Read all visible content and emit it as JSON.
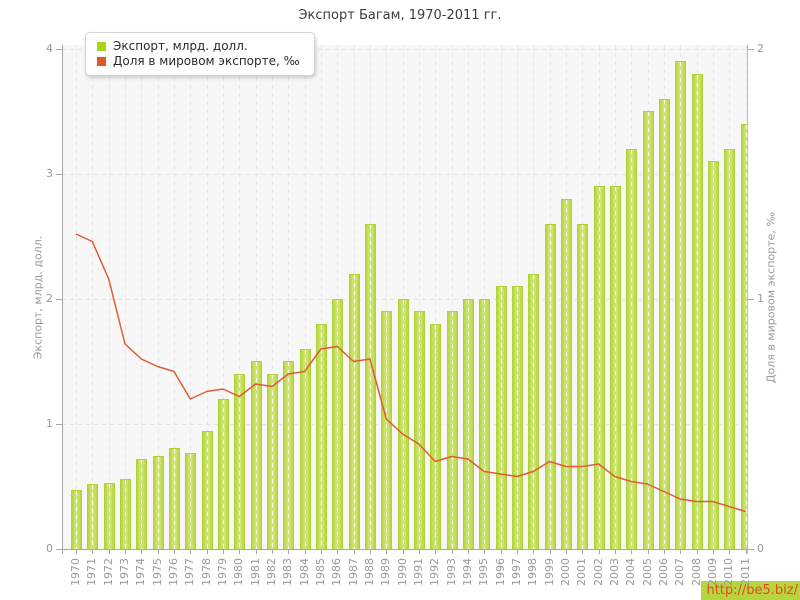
{
  "title": "Экспорт Багам, 1970-2011 гг.",
  "legend": {
    "items": [
      {
        "label": "Экспорт, млрд. долл.",
        "color": "#a9d318"
      },
      {
        "label": "Доля в мировом экспорте, ‰",
        "color": "#e2572b"
      }
    ]
  },
  "watermark": {
    "text": "http://be5.biz/",
    "bg": "#b6d53e",
    "color": "#e8491f"
  },
  "chart_data": {
    "type": "bar",
    "title": "Экспорт Багам, 1970-2011 гг.",
    "categories": [
      "1970",
      "1971",
      "1972",
      "1973",
      "1974",
      "1975",
      "1976",
      "1977",
      "1978",
      "1979",
      "1980",
      "1981",
      "1982",
      "1983",
      "1984",
      "1985",
      "1986",
      "1987",
      "1988",
      "1989",
      "1990",
      "1991",
      "1992",
      "1993",
      "1994",
      "1995",
      "1996",
      "1997",
      "1998",
      "1999",
      "2000",
      "2001",
      "2002",
      "2003",
      "2004",
      "2005",
      "2006",
      "2007",
      "2008",
      "2009",
      "2010",
      "2011"
    ],
    "series": [
      {
        "name": "Экспорт, млрд. долл.",
        "type": "bar",
        "axis": "left",
        "color": "#b6d640",
        "values": [
          0.47,
          0.52,
          0.53,
          0.56,
          0.72,
          0.74,
          0.81,
          0.77,
          0.94,
          1.2,
          1.4,
          1.5,
          1.4,
          1.5,
          1.6,
          1.8,
          2.0,
          2.2,
          2.6,
          1.9,
          2.0,
          1.9,
          1.8,
          1.9,
          2.0,
          2.0,
          2.1,
          2.1,
          2.2,
          2.6,
          2.8,
          2.6,
          2.9,
          2.9,
          3.2,
          3.5,
          3.6,
          3.9,
          3.8,
          3.1,
          3.2,
          3.4
        ]
      },
      {
        "name": "Доля в мировом экспорте, ‰",
        "type": "line",
        "axis": "right",
        "color": "#e05c33",
        "values": [
          1.26,
          1.23,
          1.08,
          0.82,
          0.76,
          0.73,
          0.71,
          0.6,
          0.63,
          0.64,
          0.61,
          0.66,
          0.65,
          0.7,
          0.71,
          0.8,
          0.81,
          0.75,
          0.76,
          0.52,
          0.46,
          0.42,
          0.35,
          0.37,
          0.36,
          0.31,
          0.3,
          0.29,
          0.31,
          0.35,
          0.33,
          0.33,
          0.34,
          0.29,
          0.27,
          0.26,
          0.23,
          0.2,
          0.19,
          0.19,
          0.17,
          0.15
        ]
      }
    ],
    "left_axis": {
      "label": "Экспорт, млрд. долл.",
      "range": [
        0,
        4
      ],
      "ticks": [
        "0",
        "1",
        "2",
        "3",
        "4"
      ]
    },
    "right_axis": {
      "label": "Доля в мировом экспорте, ‰",
      "range": [
        0,
        2
      ],
      "ticks": [
        "0",
        "1",
        "2"
      ]
    },
    "grid": true,
    "legend_position": "top-left"
  }
}
